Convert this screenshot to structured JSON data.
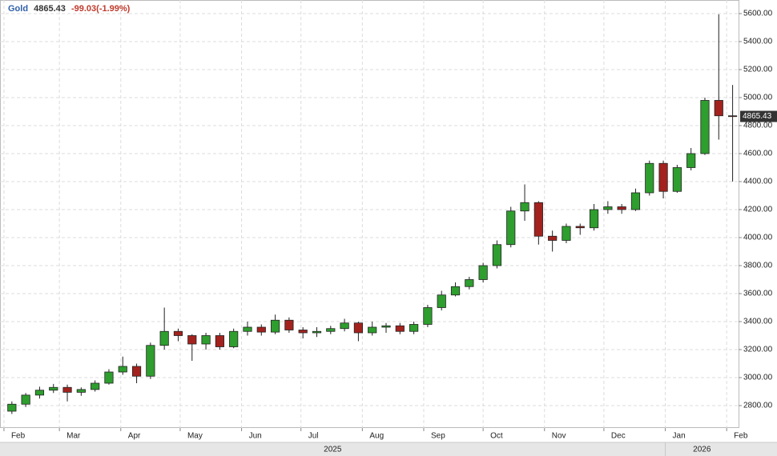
{
  "chart_data": {
    "type": "candlestick",
    "title": "Gold",
    "change": -99.03,
    "change_pct": {
      "value": -1.99,
      "label": "(-1.99%)"
    },
    "x": [
      "2025-02-05",
      "2025-02-12",
      "2025-02-19",
      "2025-02-26",
      "2025-03-05",
      "2025-03-12",
      "2025-03-19",
      "2025-03-26",
      "2025-04-02",
      "2025-04-09",
      "2025-04-16",
      "2025-04-23",
      "2025-04-30",
      "2025-05-07",
      "2025-05-14",
      "2025-05-21",
      "2025-05-28",
      "2025-06-04",
      "2025-06-11",
      "2025-06-18",
      "2025-06-25",
      "2025-07-02",
      "2025-07-09",
      "2025-07-16",
      "2025-07-23",
      "2025-07-30",
      "2025-08-06",
      "2025-08-13",
      "2025-08-20",
      "2025-08-27",
      "2025-09-03",
      "2025-09-10",
      "2025-09-17",
      "2025-09-24",
      "2025-10-01",
      "2025-10-08",
      "2025-10-15",
      "2025-10-22",
      "2025-10-29",
      "2025-11-05",
      "2025-11-12",
      "2025-11-19",
      "2025-11-26",
      "2025-12-03",
      "2025-12-10",
      "2025-12-17",
      "2025-12-24",
      "2025-12-31",
      "2026-01-07",
      "2026-01-14",
      "2026-01-21",
      "2026-01-28",
      "2026-02-04"
    ],
    "open": [
      2760,
      2810,
      2875,
      2910,
      2930,
      2895,
      2915,
      2960,
      3040,
      3080,
      3010,
      3230,
      3330,
      3300,
      3240,
      3300,
      3220,
      3330,
      3360,
      3325,
      3410,
      3340,
      3320,
      3330,
      3350,
      3390,
      3320,
      3360,
      3370,
      3330,
      3380,
      3500,
      3590,
      3650,
      3700,
      3800,
      3950,
      4190,
      4250,
      4010,
      3980,
      4080,
      4070,
      4200,
      4220,
      4200,
      4320,
      4530,
      4330,
      4500,
      4600,
      4980,
      4870
    ],
    "high": [
      2830,
      2890,
      2935,
      2955,
      2950,
      2930,
      2980,
      3060,
      3150,
      3100,
      3250,
      3500,
      3350,
      3310,
      3320,
      3320,
      3350,
      3400,
      3380,
      3450,
      3430,
      3360,
      3360,
      3370,
      3420,
      3400,
      3400,
      3390,
      3390,
      3400,
      3520,
      3620,
      3680,
      3720,
      3820,
      3980,
      4220,
      4380,
      4260,
      4050,
      4100,
      4100,
      4240,
      4260,
      4240,
      4350,
      4550,
      4550,
      4520,
      4640,
      5000,
      5595,
      5090
    ],
    "low": [
      2740,
      2790,
      2850,
      2890,
      2830,
      2870,
      2900,
      2950,
      3020,
      2960,
      2990,
      3200,
      3260,
      3120,
      3200,
      3200,
      3210,
      3300,
      3300,
      3310,
      3320,
      3280,
      3290,
      3310,
      3330,
      3260,
      3300,
      3320,
      3310,
      3310,
      3360,
      3480,
      3580,
      3630,
      3680,
      3780,
      3930,
      4120,
      3950,
      3900,
      3960,
      4020,
      4050,
      4170,
      4170,
      4190,
      4300,
      4280,
      4320,
      4480,
      4590,
      4700,
      4400
    ],
    "close": [
      2810,
      2875,
      2910,
      2930,
      2895,
      2915,
      2960,
      3040,
      3080,
      3010,
      3230,
      3330,
      3300,
      3240,
      3300,
      3220,
      3330,
      3360,
      3325,
      3410,
      3340,
      3320,
      3330,
      3350,
      3390,
      3320,
      3360,
      3370,
      3330,
      3380,
      3500,
      3590,
      3650,
      3700,
      3800,
      3950,
      4190,
      4250,
      4010,
      3980,
      4080,
      4070,
      4200,
      4220,
      4200,
      4320,
      4530,
      4330,
      4500,
      4600,
      4980,
      4870,
      4865.43
    ],
    "up_color": "#2e9e2e",
    "down_color": "#a3221e",
    "xlim": [
      "2025-01-30",
      "2026-02-07"
    ],
    "xticks": [
      {
        "value": "2025-02-01",
        "label": "Feb"
      },
      {
        "value": "2025-03-01",
        "label": "Mar"
      },
      {
        "value": "2025-04-01",
        "label": "Apr"
      },
      {
        "value": "2025-05-01",
        "label": "May"
      },
      {
        "value": "2025-06-01",
        "label": "Jun"
      },
      {
        "value": "2025-07-01",
        "label": "Jul"
      },
      {
        "value": "2025-08-01",
        "label": "Aug"
      },
      {
        "value": "2025-09-01",
        "label": "Sep"
      },
      {
        "value": "2025-10-01",
        "label": "Oct"
      },
      {
        "value": "2025-11-01",
        "label": "Nov"
      },
      {
        "value": "2025-12-01",
        "label": "Dec"
      },
      {
        "value": "2026-01-01",
        "label": "Jan"
      },
      {
        "value": "2026-02-01",
        "label": "Feb"
      }
    ],
    "year_ticks": [
      {
        "value": "2025-01-01",
        "label": "2025"
      },
      {
        "value": "2026-01-01",
        "label": "2026"
      }
    ],
    "ylim": [
      2640,
      5697
    ],
    "yticks": [
      {
        "value": 2800,
        "label": "2800.00"
      },
      {
        "value": 3000,
        "label": "3000.00"
      },
      {
        "value": 3200,
        "label": "3200.00"
      },
      {
        "value": 3400,
        "label": "3400.00"
      },
      {
        "value": 3600,
        "label": "3600.00"
      },
      {
        "value": 3800,
        "label": "3800.00"
      },
      {
        "value": 4000,
        "label": "4000.00"
      },
      {
        "value": 4200,
        "label": "4200.00"
      },
      {
        "value": 4400,
        "label": "4400.00"
      },
      {
        "value": 4600,
        "label": "4600.00"
      },
      {
        "value": 4800,
        "label": "4800.00"
      },
      {
        "value": 5000,
        "label": "5000.00"
      },
      {
        "value": 5200,
        "label": "5200.00"
      },
      {
        "value": 5400,
        "label": "5400.00"
      },
      {
        "value": 5600,
        "label": "5600.00"
      }
    ],
    "grid": true
  }
}
